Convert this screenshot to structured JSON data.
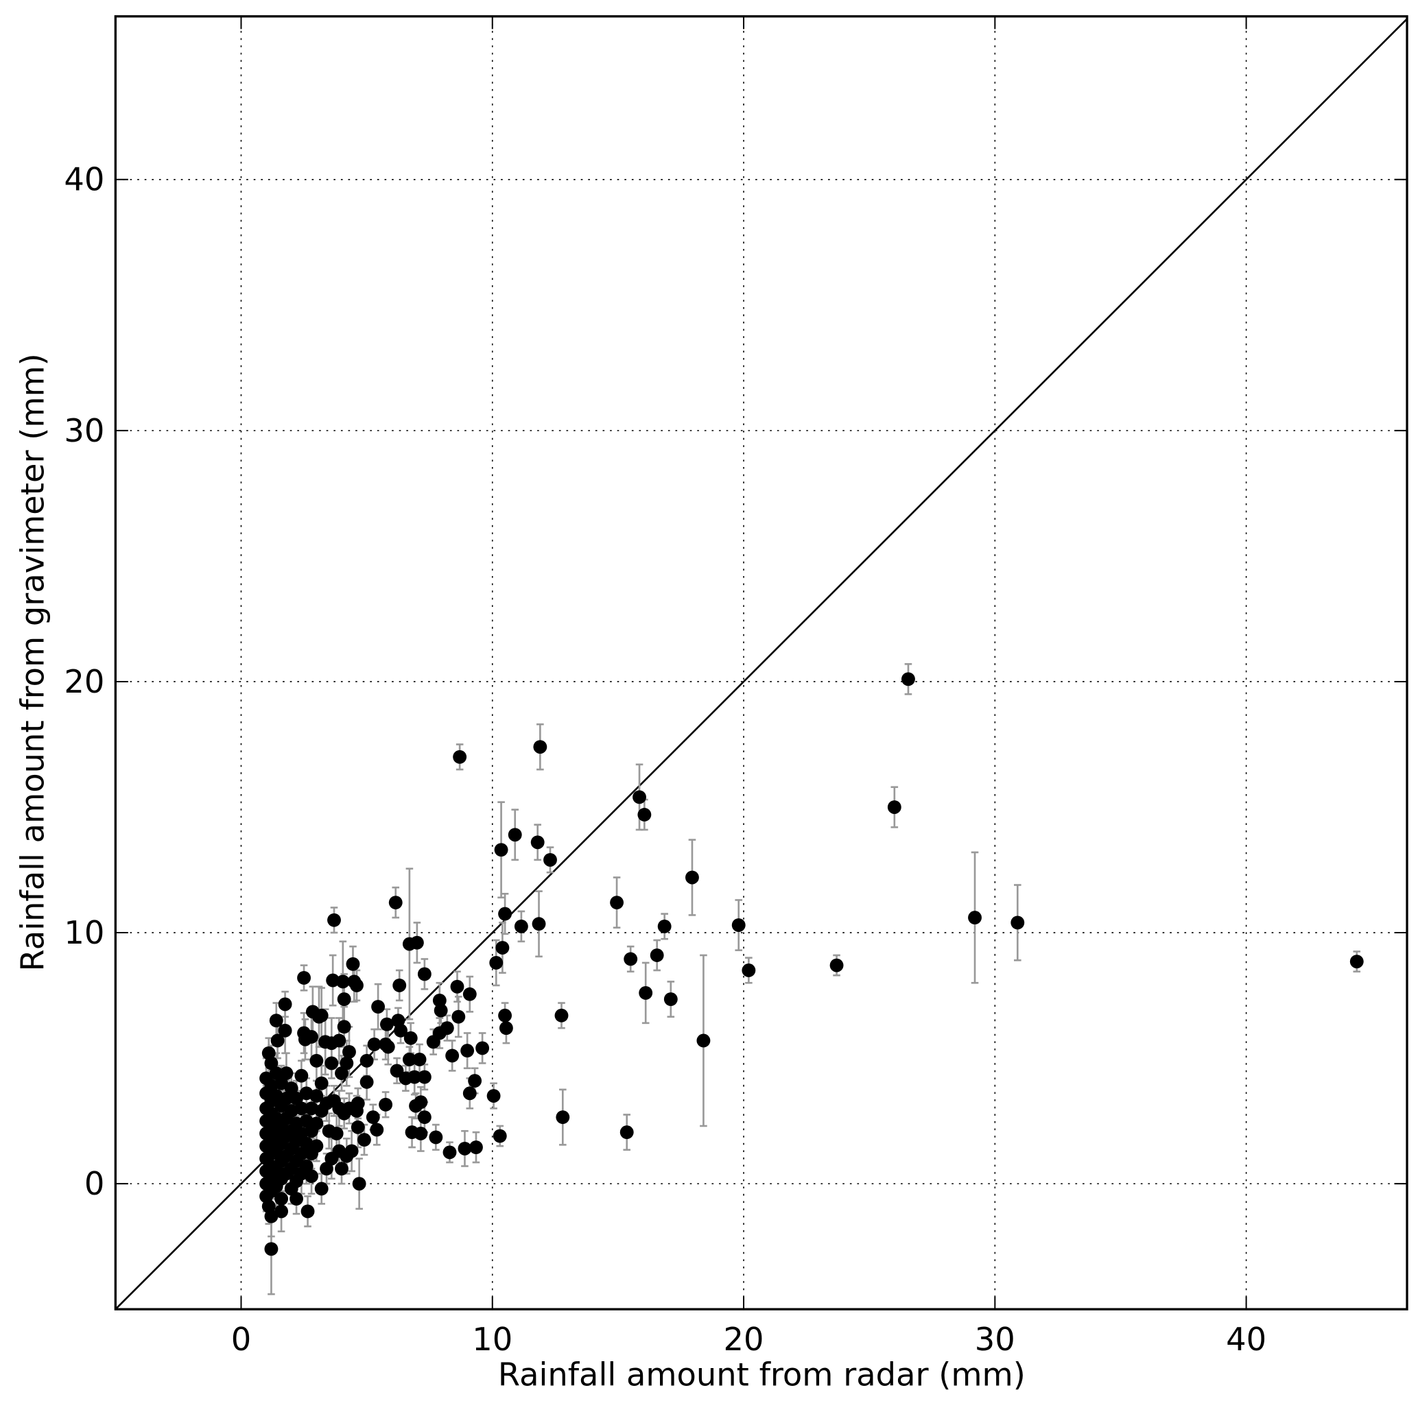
{
  "chart_data": {
    "type": "scatter",
    "title": "",
    "xlabel": "Rainfall amount from radar (mm)",
    "ylabel": "Rainfall amount from gravimeter (mm)",
    "xlim": [
      -5,
      46.4
    ],
    "ylim": [
      -5,
      46.5
    ],
    "xticks": [
      0,
      10,
      20,
      30,
      40
    ],
    "yticks": [
      0,
      10,
      20,
      30,
      40
    ],
    "xtick_labels": [
      "0",
      "10",
      "20",
      "30",
      "40"
    ],
    "ytick_labels": [
      "0",
      "10",
      "20",
      "30",
      "40"
    ],
    "grid": true,
    "reference_line": "y = x",
    "marker_color": "#000000",
    "errorbar_color": "#999999",
    "point_fields": [
      "x",
      "y",
      "yerr"
    ],
    "points": [
      [
        26.55,
        20.1,
        0.6
      ],
      [
        8.7,
        17.0,
        0.5
      ],
      [
        11.9,
        17.4,
        0.9
      ],
      [
        15.85,
        15.4,
        1.3
      ],
      [
        16.05,
        14.7,
        0.6
      ],
      [
        26.0,
        15.0,
        0.8
      ],
      [
        10.35,
        13.3,
        1.9
      ],
      [
        10.9,
        13.9,
        1.0
      ],
      [
        11.8,
        13.6,
        0.7
      ],
      [
        12.3,
        12.9,
        0.5
      ],
      [
        17.95,
        12.2,
        1.5
      ],
      [
        14.95,
        11.2,
        1.0
      ],
      [
        29.2,
        10.6,
        2.6
      ],
      [
        30.9,
        10.4,
        1.5
      ],
      [
        19.8,
        10.3,
        1.0
      ],
      [
        11.85,
        10.35,
        1.3
      ],
      [
        11.15,
        10.25,
        0.6
      ],
      [
        10.5,
        10.75,
        0.8
      ],
      [
        16.85,
        10.25,
        0.5
      ],
      [
        10.4,
        9.4,
        1.0
      ],
      [
        10.15,
        8.8,
        0.9
      ],
      [
        44.4,
        8.85,
        0.4
      ],
      [
        23.7,
        8.7,
        0.4
      ],
      [
        20.2,
        8.5,
        0.5
      ],
      [
        15.5,
        8.95,
        0.5
      ],
      [
        16.55,
        9.1,
        0.6
      ],
      [
        16.1,
        7.6,
        1.2
      ],
      [
        17.1,
        7.35,
        0.7
      ],
      [
        18.4,
        5.7,
        3.4
      ],
      [
        12.75,
        6.7,
        0.5
      ],
      [
        10.5,
        6.7,
        0.5
      ],
      [
        10.55,
        6.2,
        0.6
      ],
      [
        12.8,
        2.65,
        1.1
      ],
      [
        15.35,
        2.05,
        0.7
      ],
      [
        10.3,
        1.9,
        0.4
      ],
      [
        10.05,
        3.5,
        0.5
      ],
      [
        9.6,
        5.4,
        0.6
      ],
      [
        9.1,
        7.55,
        0.7
      ],
      [
        8.65,
        6.65,
        0.8
      ],
      [
        8.6,
        7.85,
        0.6
      ],
      [
        9.0,
        5.3,
        0.7
      ],
      [
        9.3,
        4.1,
        0.5
      ],
      [
        9.1,
        3.6,
        0.6
      ],
      [
        9.35,
        1.45,
        0.6
      ],
      [
        8.9,
        1.4,
        0.7
      ],
      [
        8.3,
        1.25,
        0.4
      ],
      [
        8.4,
        5.1,
        0.6
      ],
      [
        7.75,
        1.85,
        0.5
      ],
      [
        7.65,
        5.65,
        0.5
      ],
      [
        7.9,
        6.0,
        0.6
      ],
      [
        7.95,
        6.9,
        0.5
      ],
      [
        7.9,
        7.3,
        0.7
      ],
      [
        8.2,
        6.2,
        0.5
      ],
      [
        7.3,
        8.35,
        0.6
      ],
      [
        7.0,
        9.6,
        0.8
      ],
      [
        6.7,
        9.55,
        3.0
      ],
      [
        6.15,
        11.2,
        0.6
      ],
      [
        6.3,
        7.9,
        0.6
      ],
      [
        6.25,
        6.5,
        0.5
      ],
      [
        6.35,
        6.1,
        0.5
      ],
      [
        7.1,
        4.95,
        0.6
      ],
      [
        7.3,
        4.25,
        0.5
      ],
      [
        6.9,
        4.25,
        0.7
      ],
      [
        6.7,
        4.95,
        0.5
      ],
      [
        7.15,
        3.25,
        0.6
      ],
      [
        6.95,
        3.1,
        0.5
      ],
      [
        7.3,
        2.65,
        0.6
      ],
      [
        7.15,
        2.0,
        0.7
      ],
      [
        6.8,
        2.05,
        0.6
      ],
      [
        6.55,
        4.2,
        0.5
      ],
      [
        6.2,
        4.5,
        0.5
      ],
      [
        6.75,
        5.8,
        0.6
      ],
      [
        5.8,
        6.35,
        0.6
      ],
      [
        5.75,
        5.55,
        0.6
      ],
      [
        5.85,
        5.45,
        0.7
      ],
      [
        5.75,
        3.15,
        0.5
      ],
      [
        5.45,
        7.05,
        0.9
      ],
      [
        5.3,
        5.55,
        0.6
      ],
      [
        5.4,
        2.15,
        0.6
      ],
      [
        5.25,
        2.65,
        0.5
      ],
      [
        5.0,
        4.05,
        0.7
      ],
      [
        5.0,
        4.9,
        0.6
      ],
      [
        4.9,
        1.75,
        0.6
      ],
      [
        4.7,
        0.0,
        1.0
      ],
      [
        4.65,
        2.25,
        0.8
      ],
      [
        4.65,
        3.2,
        0.6
      ],
      [
        4.6,
        7.9,
        0.6
      ],
      [
        4.5,
        8.05,
        0.8
      ],
      [
        4.45,
        8.75,
        0.7
      ],
      [
        4.3,
        5.25,
        1.0
      ],
      [
        4.2,
        4.8,
        0.9
      ],
      [
        4.1,
        7.35,
        1.0
      ],
      [
        4.05,
        8.05,
        1.6
      ],
      [
        4.1,
        6.25,
        0.8
      ],
      [
        3.7,
        10.5,
        0.5
      ],
      [
        3.65,
        8.1,
        1.0
      ],
      [
        3.9,
        5.7,
        0.9
      ],
      [
        3.6,
        5.6,
        1.0
      ],
      [
        3.35,
        5.65,
        1.3
      ],
      [
        3.1,
        6.65,
        1.2
      ],
      [
        3.2,
        6.7,
        1.1
      ],
      [
        2.85,
        6.85,
        1.0
      ],
      [
        2.8,
        5.85,
        0.9
      ],
      [
        2.55,
        5.75,
        0.8
      ],
      [
        2.5,
        8.2,
        0.5
      ],
      [
        2.5,
        6.0,
        0.8
      ],
      [
        1.75,
        7.15,
        0.5
      ],
      [
        1.4,
        6.5,
        0.7
      ],
      [
        1.75,
        6.1,
        0.9
      ],
      [
        1.45,
        5.7,
        0.7
      ],
      [
        1.1,
        5.2,
        0.6
      ],
      [
        1.2,
        -2.6,
        1.8
      ],
      [
        1.6,
        -1.1,
        0.8
      ],
      [
        2.65,
        -1.1,
        0.6
      ],
      [
        1.0,
        4.2,
        0.8
      ],
      [
        1.0,
        3.6,
        0.7
      ],
      [
        1.0,
        3.0,
        0.9
      ],
      [
        1.0,
        2.5,
        0.6
      ],
      [
        1.0,
        2.0,
        0.8
      ],
      [
        1.0,
        1.5,
        0.7
      ],
      [
        1.0,
        1.0,
        0.6
      ],
      [
        1.0,
        0.5,
        0.8
      ],
      [
        1.0,
        0.0,
        0.7
      ],
      [
        1.0,
        -0.5,
        0.6
      ],
      [
        1.1,
        -0.9,
        0.7
      ],
      [
        1.2,
        -1.3,
        0.8
      ],
      [
        1.2,
        4.8,
        0.7
      ],
      [
        1.2,
        3.9,
        0.6
      ],
      [
        1.2,
        3.3,
        0.7
      ],
      [
        1.2,
        2.8,
        0.6
      ],
      [
        1.2,
        2.2,
        0.8
      ],
      [
        1.2,
        1.7,
        0.6
      ],
      [
        1.2,
        1.2,
        0.7
      ],
      [
        1.2,
        0.7,
        0.6
      ],
      [
        1.2,
        0.2,
        0.8
      ],
      [
        1.2,
        -0.3,
        0.7
      ],
      [
        1.4,
        4.4,
        0.8
      ],
      [
        1.4,
        3.5,
        0.6
      ],
      [
        1.4,
        2.6,
        0.7
      ],
      [
        1.4,
        1.9,
        0.6
      ],
      [
        1.4,
        1.3,
        0.7
      ],
      [
        1.4,
        0.6,
        0.6
      ],
      [
        1.4,
        -0.1,
        0.8
      ],
      [
        1.6,
        4.0,
        0.7
      ],
      [
        1.6,
        3.1,
        0.6
      ],
      [
        1.6,
        2.3,
        0.7
      ],
      [
        1.6,
        1.6,
        0.8
      ],
      [
        1.6,
        0.9,
        0.6
      ],
      [
        1.6,
        0.2,
        0.7
      ],
      [
        1.6,
        -0.6,
        0.6
      ],
      [
        1.8,
        4.4,
        0.8
      ],
      [
        1.8,
        3.4,
        0.7
      ],
      [
        1.8,
        2.6,
        0.6
      ],
      [
        1.8,
        1.9,
        0.7
      ],
      [
        1.8,
        1.1,
        0.6
      ],
      [
        1.8,
        0.4,
        0.7
      ],
      [
        2.0,
        3.8,
        0.6
      ],
      [
        2.0,
        2.9,
        0.7
      ],
      [
        2.0,
        2.1,
        0.8
      ],
      [
        2.0,
        1.4,
        0.6
      ],
      [
        2.0,
        0.6,
        0.7
      ],
      [
        2.0,
        -0.2,
        0.6
      ],
      [
        2.2,
        3.4,
        0.7
      ],
      [
        2.2,
        2.4,
        0.6
      ],
      [
        2.2,
        1.7,
        0.7
      ],
      [
        2.2,
        0.9,
        0.6
      ],
      [
        2.2,
        0.1,
        0.8
      ],
      [
        2.2,
        -0.6,
        0.6
      ],
      [
        2.4,
        4.3,
        0.6
      ],
      [
        2.4,
        3.0,
        0.7
      ],
      [
        2.4,
        2.0,
        0.6
      ],
      [
        2.4,
        1.2,
        0.7
      ],
      [
        2.4,
        0.4,
        0.8
      ],
      [
        2.6,
        3.6,
        0.6
      ],
      [
        2.6,
        2.5,
        0.7
      ],
      [
        2.6,
        1.6,
        0.6
      ],
      [
        2.6,
        0.7,
        0.7
      ],
      [
        2.8,
        3.0,
        0.6
      ],
      [
        2.8,
        2.1,
        0.7
      ],
      [
        2.8,
        1.2,
        0.6
      ],
      [
        2.8,
        0.3,
        0.7
      ],
      [
        3.0,
        4.9,
        0.8
      ],
      [
        3.0,
        3.5,
        0.6
      ],
      [
        3.0,
        2.4,
        0.7
      ],
      [
        3.0,
        1.5,
        0.6
      ],
      [
        3.2,
        4.0,
        0.7
      ],
      [
        3.2,
        2.9,
        0.6
      ],
      [
        3.2,
        -0.2,
        0.6
      ],
      [
        3.4,
        3.2,
        0.7
      ],
      [
        3.4,
        0.6,
        0.6
      ],
      [
        3.5,
        2.1,
        0.7
      ],
      [
        3.6,
        4.8,
        0.6
      ],
      [
        3.6,
        1.0,
        0.8
      ],
      [
        3.7,
        3.3,
        0.6
      ],
      [
        3.8,
        2.0,
        0.7
      ],
      [
        3.9,
        1.3,
        0.6
      ],
      [
        3.9,
        3.0,
        0.7
      ],
      [
        4.0,
        0.6,
        0.6
      ],
      [
        4.0,
        4.4,
        0.7
      ],
      [
        4.1,
        2.8,
        0.6
      ],
      [
        4.2,
        1.1,
        0.7
      ],
      [
        4.3,
        3.0,
        0.6
      ],
      [
        4.4,
        1.3,
        0.8
      ],
      [
        4.6,
        2.9,
        0.6
      ]
    ]
  }
}
